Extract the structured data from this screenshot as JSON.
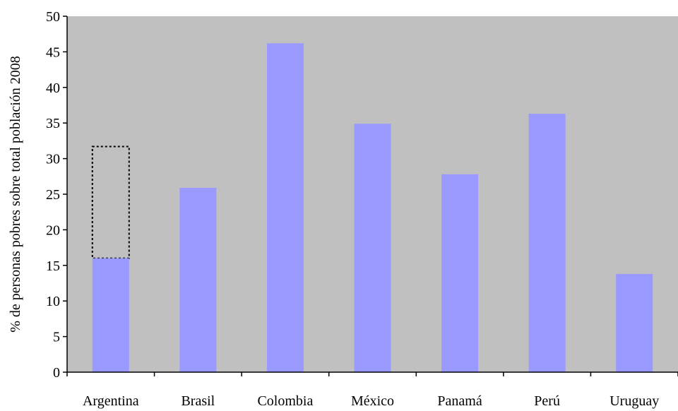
{
  "chart_data": {
    "type": "bar",
    "title": "",
    "xlabel": "",
    "ylabel": "% de personas pobres sobre total población 2008",
    "categories": [
      "Argentina",
      "Brasil",
      "Colombia",
      "México",
      "Panamá",
      "Perú",
      "Uruguay"
    ],
    "values": [
      16,
      25.9,
      46.2,
      34.9,
      27.8,
      36.3,
      13.8
    ],
    "ylim": [
      0,
      50
    ],
    "yticks": [
      0,
      5,
      10,
      15,
      20,
      25,
      30,
      35,
      40,
      45,
      50
    ],
    "grid": false,
    "legend": "none",
    "annotations": [
      {
        "category": "Argentina",
        "style": "dotted-outline",
        "from": 16,
        "to": 31.7
      }
    ],
    "colors": {
      "bar": "#9999ff",
      "plot_background": "#c0c0c0",
      "axis": "#000000"
    }
  }
}
